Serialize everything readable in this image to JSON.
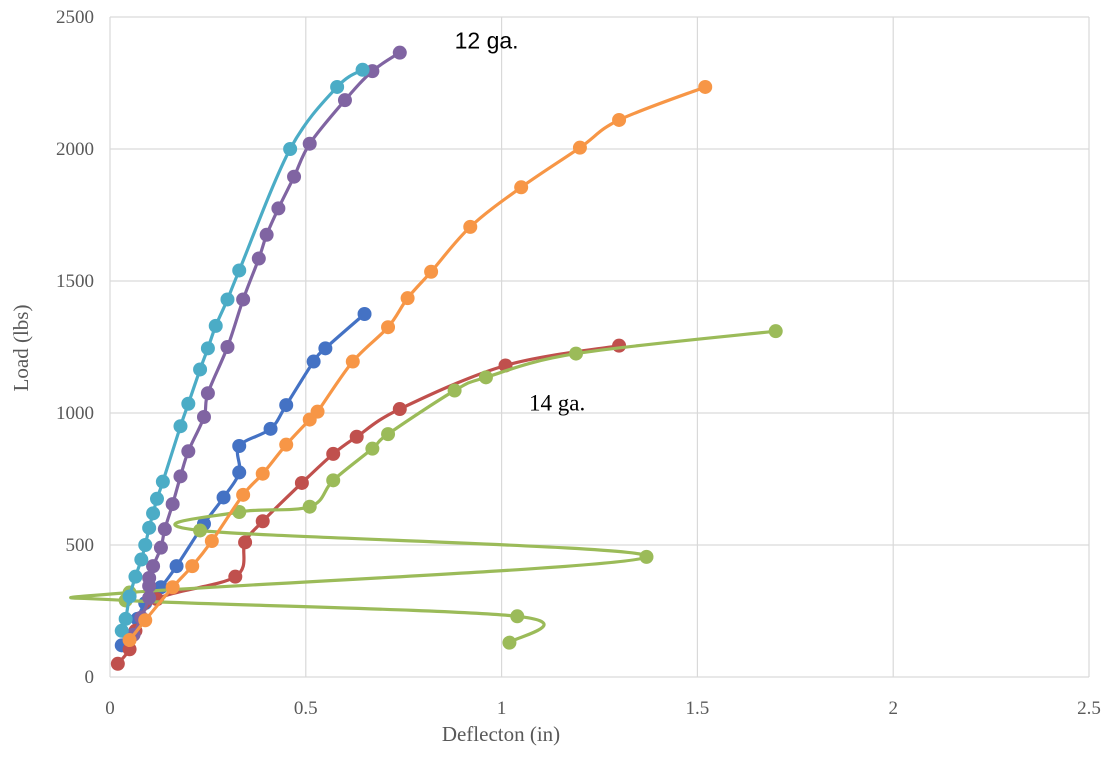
{
  "chart_data": {
    "type": "scatter",
    "title": "",
    "xlabel": "Deflecton (in)",
    "ylabel": "Load (lbs)",
    "xlim": [
      0,
      2.5
    ],
    "ylim": [
      0,
      2500
    ],
    "xticks": [
      0,
      0.5,
      1,
      1.5,
      2,
      2.5
    ],
    "yticks": [
      0,
      500,
      1000,
      1500,
      2000,
      2500
    ],
    "xtick_labels": [
      "0",
      "0.5",
      "1",
      "1.5",
      "2",
      "2.5"
    ],
    "ytick_labels": [
      "0",
      "500",
      "1000",
      "1500",
      "2000",
      "2500"
    ],
    "grid": true,
    "lines": "smooth-with-markers",
    "annotations": [
      {
        "text": "12 ga.",
        "x": 0.88,
        "y": 2380,
        "font": "sans"
      },
      {
        "text": "14 ga.",
        "x": 1.07,
        "y": 1010,
        "font": "serif"
      }
    ],
    "series": [
      {
        "color": "#4472c4",
        "points": [
          [
            0.03,
            120
          ],
          [
            0.05,
            150
          ],
          [
            0.07,
            220
          ],
          [
            0.09,
            280
          ],
          [
            0.13,
            340
          ],
          [
            0.17,
            420
          ],
          [
            0.24,
            580
          ],
          [
            0.29,
            680
          ],
          [
            0.33,
            775
          ],
          [
            0.33,
            875
          ],
          [
            0.41,
            940
          ],
          [
            0.45,
            1030
          ],
          [
            0.52,
            1195
          ],
          [
            0.55,
            1245
          ],
          [
            0.65,
            1375
          ]
        ]
      },
      {
        "color": "#c0504d",
        "points": [
          [
            0.02,
            50
          ],
          [
            0.05,
            105
          ],
          [
            0.065,
            175
          ],
          [
            0.12,
            295
          ],
          [
            0.32,
            380
          ],
          [
            0.345,
            510
          ],
          [
            0.39,
            590
          ],
          [
            0.49,
            735
          ],
          [
            0.57,
            845
          ],
          [
            0.63,
            910
          ],
          [
            0.74,
            1015
          ],
          [
            1.01,
            1180
          ],
          [
            1.3,
            1255
          ]
        ]
      },
      {
        "color": "#9bbb59",
        "points": [
          [
            1.02,
            130
          ],
          [
            1.04,
            230
          ],
          [
            0.04,
            290
          ],
          [
            0.05,
            320
          ],
          [
            1.37,
            455
          ],
          [
            0.23,
            555
          ],
          [
            0.33,
            625
          ],
          [
            0.51,
            645
          ],
          [
            0.57,
            745
          ],
          [
            0.67,
            865
          ],
          [
            0.71,
            920
          ],
          [
            0.88,
            1085
          ],
          [
            0.96,
            1135
          ],
          [
            1.19,
            1225
          ],
          [
            1.7,
            1310
          ]
        ]
      },
      {
        "color": "#8064a2",
        "points": [
          [
            0.06,
            160
          ],
          [
            0.08,
            225
          ],
          [
            0.1,
            300
          ],
          [
            0.1,
            345
          ],
          [
            0.1,
            375
          ],
          [
            0.11,
            420
          ],
          [
            0.13,
            490
          ],
          [
            0.14,
            560
          ],
          [
            0.16,
            655
          ],
          [
            0.18,
            760
          ],
          [
            0.2,
            855
          ],
          [
            0.24,
            985
          ],
          [
            0.25,
            1075
          ],
          [
            0.3,
            1250
          ],
          [
            0.34,
            1430
          ],
          [
            0.38,
            1585
          ],
          [
            0.4,
            1675
          ],
          [
            0.43,
            1775
          ],
          [
            0.47,
            1895
          ],
          [
            0.51,
            2020
          ],
          [
            0.6,
            2185
          ],
          [
            0.67,
            2295
          ],
          [
            0.74,
            2365
          ]
        ]
      },
      {
        "color": "#4bacc6",
        "points": [
          [
            0.03,
            175
          ],
          [
            0.04,
            220
          ],
          [
            0.05,
            305
          ],
          [
            0.065,
            380
          ],
          [
            0.08,
            445
          ],
          [
            0.09,
            500
          ],
          [
            0.1,
            565
          ],
          [
            0.11,
            620
          ],
          [
            0.12,
            675
          ],
          [
            0.135,
            740
          ],
          [
            0.18,
            950
          ],
          [
            0.2,
            1035
          ],
          [
            0.23,
            1165
          ],
          [
            0.25,
            1245
          ],
          [
            0.27,
            1330
          ],
          [
            0.3,
            1430
          ],
          [
            0.33,
            1540
          ],
          [
            0.46,
            2000
          ],
          [
            0.58,
            2235
          ],
          [
            0.645,
            2300
          ]
        ]
      },
      {
        "color": "#f79646",
        "points": [
          [
            0.05,
            140
          ],
          [
            0.09,
            215
          ],
          [
            0.16,
            340
          ],
          [
            0.21,
            420
          ],
          [
            0.26,
            515
          ],
          [
            0.34,
            690
          ],
          [
            0.39,
            770
          ],
          [
            0.45,
            880
          ],
          [
            0.51,
            975
          ],
          [
            0.53,
            1005
          ],
          [
            0.62,
            1195
          ],
          [
            0.71,
            1325
          ],
          [
            0.76,
            1435
          ],
          [
            0.82,
            1535
          ],
          [
            0.92,
            1705
          ],
          [
            1.05,
            1855
          ],
          [
            1.2,
            2005
          ],
          [
            1.3,
            2110
          ],
          [
            1.52,
            2235
          ]
        ]
      }
    ]
  }
}
